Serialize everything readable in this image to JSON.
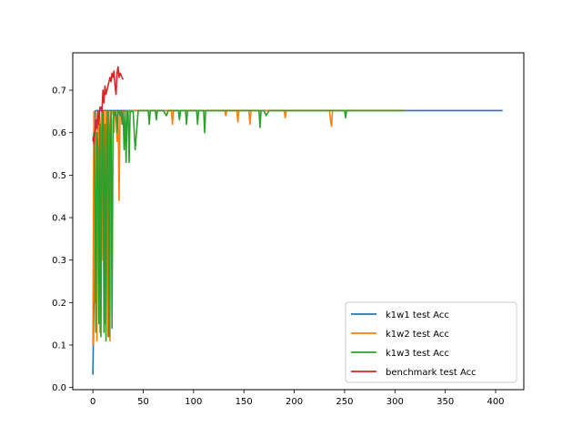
{
  "chart_data": {
    "type": "line",
    "title": "",
    "xlabel": "",
    "ylabel": "",
    "xlim": [
      -20,
      428
    ],
    "ylim": [
      -0.005,
      0.788
    ],
    "xticks": [
      0,
      50,
      100,
      150,
      200,
      250,
      300,
      350,
      400
    ],
    "yticks": [
      0.0,
      0.1,
      0.2,
      0.3,
      0.4,
      0.5,
      0.6,
      0.7
    ],
    "ytick_labels": [
      "0.0",
      "0.1",
      "0.2",
      "0.3",
      "0.4",
      "0.5",
      "0.6",
      "0.7"
    ],
    "xtick_labels": [
      "0",
      "50",
      "100",
      "150",
      "200",
      "250",
      "300",
      "350",
      "400"
    ],
    "grid": false,
    "legend_position": "bottom-right",
    "series": [
      {
        "name": "k1w1 test Acc",
        "color": "#1f77b4",
        "x": [
          0,
          1,
          2,
          3,
          4,
          5,
          10,
          50,
          100,
          200,
          300,
          407
        ],
        "y": [
          0.03,
          0.2,
          0.65,
          0.652,
          0.652,
          0.652,
          0.652,
          0.652,
          0.652,
          0.652,
          0.652,
          0.652
        ]
      },
      {
        "name": "k1w2 test Acc",
        "color": "#ff7f0e",
        "x": [
          0,
          1,
          2,
          3,
          4,
          5,
          6,
          7,
          8,
          9,
          10,
          11,
          12,
          13,
          14,
          15,
          16,
          17,
          18,
          19,
          20,
          21,
          22,
          23,
          24,
          25,
          26,
          27,
          28,
          29,
          30,
          40,
          60,
          78,
          79,
          80,
          85,
          90,
          100,
          110,
          131,
          132,
          133,
          143,
          144,
          145,
          155,
          156,
          157,
          170,
          180,
          190,
          191,
          192,
          200,
          210,
          220,
          235,
          236,
          237,
          238,
          239,
          240,
          250,
          260,
          270,
          280,
          290,
          300,
          310
        ],
        "y": [
          0.1,
          0.65,
          0.2,
          0.65,
          0.11,
          0.62,
          0.65,
          0.13,
          0.63,
          0.65,
          0.3,
          0.65,
          0.15,
          0.65,
          0.65,
          0.12,
          0.65,
          0.11,
          0.64,
          0.65,
          0.65,
          0.6,
          0.65,
          0.65,
          0.58,
          0.65,
          0.44,
          0.65,
          0.64,
          0.65,
          0.65,
          0.652,
          0.652,
          0.652,
          0.62,
          0.652,
          0.652,
          0.652,
          0.652,
          0.652,
          0.652,
          0.64,
          0.652,
          0.652,
          0.625,
          0.652,
          0.652,
          0.62,
          0.652,
          0.652,
          0.652,
          0.652,
          0.635,
          0.652,
          0.652,
          0.652,
          0.652,
          0.652,
          0.63,
          0.615,
          0.652,
          0.652,
          0.652,
          0.652,
          0.652,
          0.652,
          0.652,
          0.652,
          0.652,
          0.652
        ]
      },
      {
        "name": "k1w3 test Acc",
        "color": "#2ca02c",
        "x": [
          0,
          1,
          2,
          3,
          4,
          5,
          6,
          7,
          8,
          9,
          10,
          11,
          12,
          13,
          14,
          15,
          16,
          17,
          18,
          19,
          20,
          21,
          22,
          23,
          24,
          25,
          26,
          27,
          28,
          29,
          30,
          31,
          32,
          33,
          34,
          35,
          36,
          37,
          38,
          40,
          42,
          45,
          50,
          55,
          56,
          57,
          58,
          60,
          62,
          63,
          64,
          66,
          70,
          73,
          75,
          80,
          85,
          86,
          87,
          90,
          92,
          93,
          94,
          97,
          100,
          103,
          104,
          105,
          108,
          110,
          111,
          112,
          120,
          130,
          140,
          145,
          150,
          160,
          165,
          166,
          167,
          170,
          172,
          175,
          180,
          190,
          200,
          210,
          220,
          230,
          240,
          250,
          251,
          252,
          260,
          270,
          280,
          290,
          300,
          310
        ],
        "y": [
          0.58,
          0.6,
          0.45,
          0.13,
          0.6,
          0.56,
          0.15,
          0.62,
          0.12,
          0.6,
          0.65,
          0.13,
          0.62,
          0.11,
          0.6,
          0.65,
          0.12,
          0.6,
          0.65,
          0.14,
          0.63,
          0.65,
          0.64,
          0.65,
          0.6,
          0.65,
          0.65,
          0.64,
          0.65,
          0.62,
          0.65,
          0.56,
          0.65,
          0.53,
          0.65,
          0.65,
          0.53,
          0.65,
          0.65,
          0.65,
          0.56,
          0.652,
          0.652,
          0.652,
          0.62,
          0.652,
          0.652,
          0.652,
          0.652,
          0.63,
          0.652,
          0.652,
          0.652,
          0.64,
          0.652,
          0.652,
          0.652,
          0.63,
          0.652,
          0.652,
          0.652,
          0.62,
          0.652,
          0.652,
          0.652,
          0.652,
          0.62,
          0.652,
          0.652,
          0.652,
          0.6,
          0.652,
          0.652,
          0.652,
          0.652,
          0.652,
          0.652,
          0.652,
          0.652,
          0.612,
          0.652,
          0.652,
          0.64,
          0.652,
          0.652,
          0.652,
          0.652,
          0.652,
          0.652,
          0.652,
          0.652,
          0.652,
          0.635,
          0.652,
          0.652,
          0.652,
          0.652,
          0.652,
          0.652,
          0.652
        ]
      },
      {
        "name": "benchmark test Acc",
        "color": "#d62728",
        "x": [
          0,
          1,
          2,
          3,
          4,
          5,
          6,
          7,
          8,
          9,
          10,
          11,
          12,
          13,
          14,
          15,
          16,
          17,
          18,
          19,
          20,
          21,
          22,
          23,
          24,
          25,
          26,
          27,
          28,
          29,
          30
        ],
        "y": [
          0.59,
          0.575,
          0.6,
          0.63,
          0.61,
          0.65,
          0.62,
          0.66,
          0.66,
          0.65,
          0.7,
          0.67,
          0.71,
          0.69,
          0.7,
          0.71,
          0.72,
          0.73,
          0.72,
          0.74,
          0.73,
          0.745,
          0.71,
          0.69,
          0.74,
          0.755,
          0.73,
          0.74,
          0.735,
          0.73,
          0.725
        ]
      }
    ]
  }
}
